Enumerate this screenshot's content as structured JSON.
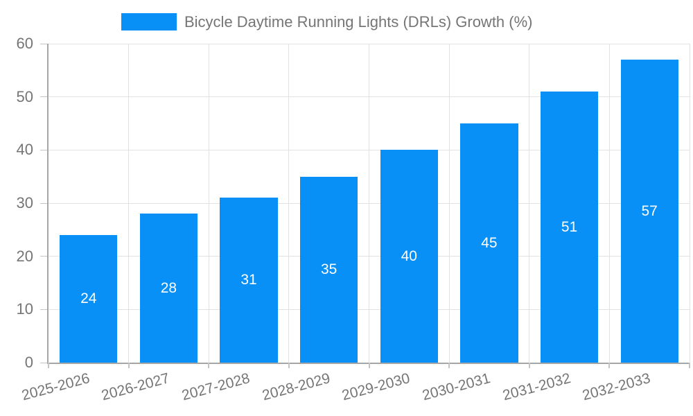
{
  "chart_data": {
    "type": "bar",
    "title": "",
    "legend_label": "Bicycle Daytime Running Lights (DRLs) Growth (%)",
    "legend_position": "top",
    "categories": [
      "2025-2026",
      "2026-2027",
      "2027-2028",
      "2028-2029",
      "2029-2030",
      "2030-2031",
      "2031-2032",
      "2032-2033"
    ],
    "series": [
      {
        "name": "Bicycle Daytime Running Lights (DRLs) Growth (%)",
        "values": [
          24,
          28,
          31,
          35,
          40,
          45,
          51,
          57
        ]
      }
    ],
    "value_labels_shown": true,
    "xlabel": "",
    "ylabel": "",
    "ylim": [
      0,
      60
    ],
    "yticks": [
      0,
      10,
      20,
      30,
      40,
      50,
      60
    ],
    "grid": true,
    "colors": {
      "bar": "#0990F7",
      "value_label": "#ffffff",
      "axis_text": "#757575",
      "gridline": "#e2e2e2",
      "axis_line": "#a6a6a6",
      "tick": "#c4c4c4"
    }
  }
}
